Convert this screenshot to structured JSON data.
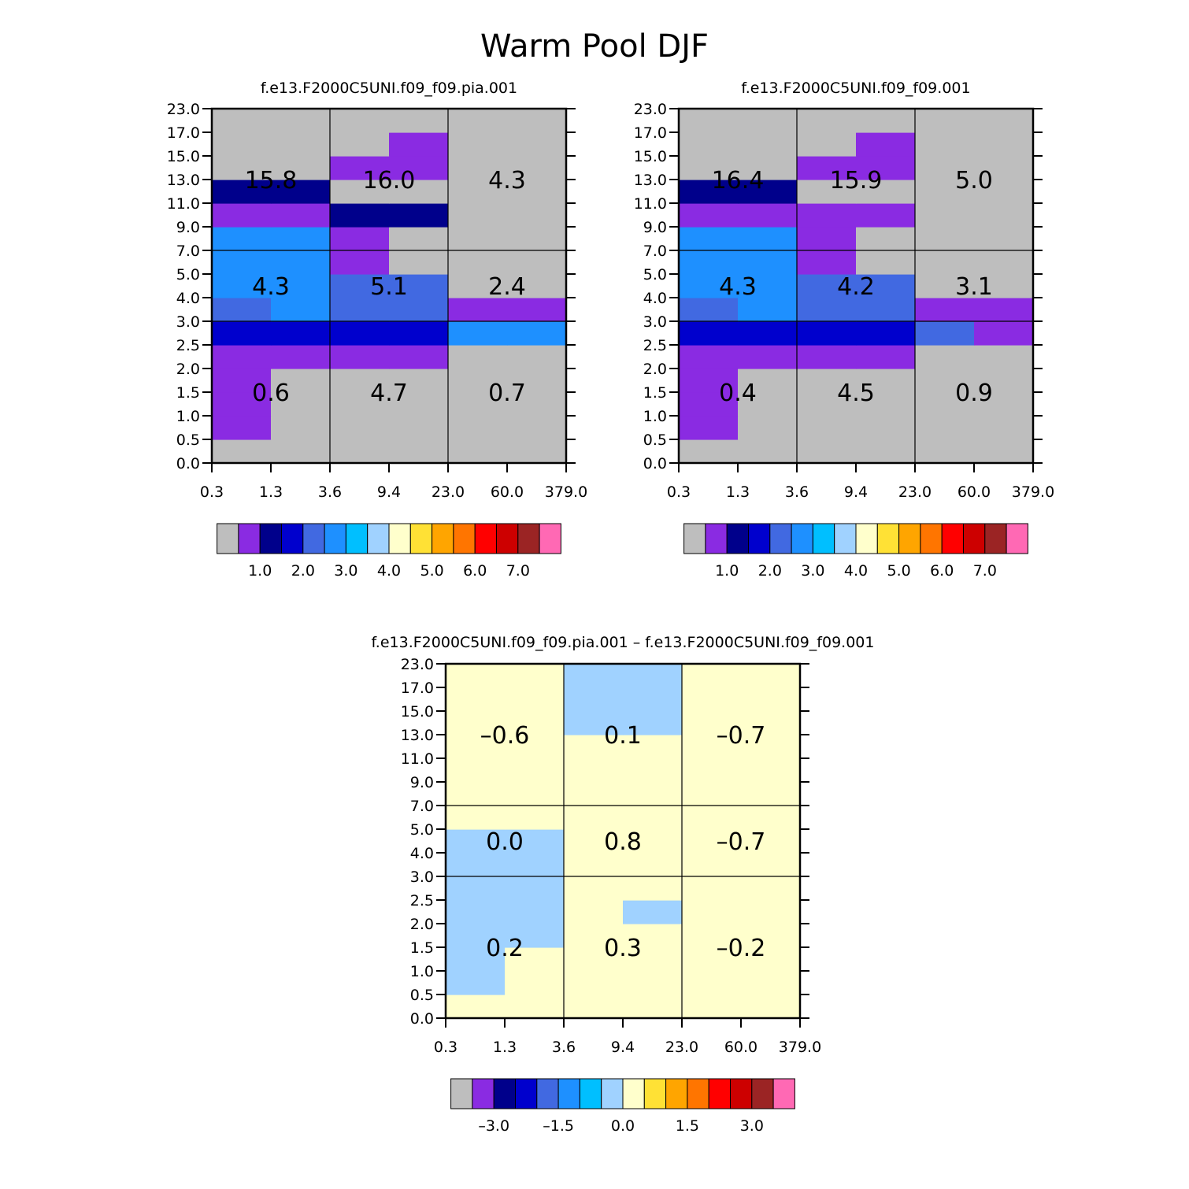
{
  "title": "Warm Pool DJF",
  "chart_data": [
    {
      "type": "heatmap",
      "title": "f.e13.F2000C5UNI.f09_f09.pia.001",
      "x_tick_labels": [
        "0.3",
        "1.3",
        "3.6",
        "9.4",
        "23.0",
        "60.0",
        "379.0"
      ],
      "y_tick_labels": [
        "0.0",
        "0.5",
        "1.0",
        "1.5",
        "2.0",
        "2.5",
        "3.0",
        "4.0",
        "5.0",
        "7.0",
        "9.0",
        "11.0",
        "13.0",
        "15.0",
        "17.0",
        "23.0"
      ],
      "cells": [
        [
          0,
          0,
          0,
          0,
          0,
          0
        ],
        [
          1,
          0,
          0,
          0,
          0,
          0
        ],
        [
          1,
          0,
          0,
          0,
          0,
          0
        ],
        [
          1,
          0,
          0,
          0,
          0,
          0
        ],
        [
          1,
          1,
          1,
          1,
          0,
          0
        ],
        [
          3,
          3,
          3,
          3,
          5,
          5
        ],
        [
          4,
          5,
          4,
          4,
          1,
          1
        ],
        [
          5,
          5,
          4,
          4,
          0,
          0
        ],
        [
          5,
          5,
          1,
          0,
          0,
          0
        ],
        [
          5,
          5,
          1,
          0,
          0,
          0
        ],
        [
          1,
          1,
          2,
          2,
          0,
          0
        ],
        [
          2,
          2,
          0,
          0,
          0,
          0
        ],
        [
          0,
          0,
          1,
          1,
          0,
          0
        ],
        [
          0,
          0,
          0,
          1,
          0,
          0
        ],
        [
          0,
          0,
          0,
          0,
          0,
          0
        ]
      ],
      "region_values": [
        {
          "label": "15.8"
        },
        {
          "label": "16.0"
        },
        {
          "label": "4.3"
        },
        {
          "label": "4.3"
        },
        {
          "label": "5.1"
        },
        {
          "label": "2.4"
        },
        {
          "label": "0.6"
        },
        {
          "label": "4.7"
        },
        {
          "label": "0.7"
        }
      ],
      "colorbar": {
        "colors": [
          "#bebebe",
          "#8a2be2",
          "#00008b",
          "#0000cd",
          "#4169e1",
          "#1e90ff",
          "#00bfff",
          "#a0d2ff",
          "#ffffcc",
          "#ffe135",
          "#ffa500",
          "#ff7500",
          "#ff0000",
          "#cd0000",
          "#9b2424",
          "#ff69b4"
        ],
        "tick_labels": [
          "1.0",
          "2.0",
          "3.0",
          "4.0",
          "5.0",
          "6.0",
          "7.0"
        ]
      }
    },
    {
      "type": "heatmap",
      "title": "f.e13.F2000C5UNI.f09_f09.001",
      "x_tick_labels": [
        "0.3",
        "1.3",
        "3.6",
        "9.4",
        "23.0",
        "60.0",
        "379.0"
      ],
      "y_tick_labels": [
        "0.0",
        "0.5",
        "1.0",
        "1.5",
        "2.0",
        "2.5",
        "3.0",
        "4.0",
        "5.0",
        "7.0",
        "9.0",
        "11.0",
        "13.0",
        "15.0",
        "17.0",
        "23.0"
      ],
      "cells": [
        [
          0,
          0,
          0,
          0,
          0,
          0
        ],
        [
          1,
          0,
          0,
          0,
          0,
          0
        ],
        [
          1,
          0,
          0,
          0,
          0,
          0
        ],
        [
          1,
          0,
          0,
          0,
          0,
          0
        ],
        [
          1,
          1,
          1,
          1,
          0,
          0
        ],
        [
          3,
          3,
          3,
          3,
          4,
          1
        ],
        [
          4,
          5,
          4,
          4,
          1,
          1
        ],
        [
          5,
          5,
          4,
          4,
          0,
          0
        ],
        [
          5,
          5,
          1,
          0,
          0,
          0
        ],
        [
          5,
          5,
          1,
          0,
          0,
          0
        ],
        [
          1,
          1,
          1,
          1,
          0,
          0
        ],
        [
          2,
          2,
          0,
          0,
          0,
          0
        ],
        [
          0,
          0,
          1,
          1,
          0,
          0
        ],
        [
          0,
          0,
          0,
          1,
          0,
          0
        ],
        [
          0,
          0,
          0,
          0,
          0,
          0
        ]
      ],
      "region_values": [
        {
          "label": "16.4"
        },
        {
          "label": "15.9"
        },
        {
          "label": "5.0"
        },
        {
          "label": "4.3"
        },
        {
          "label": "4.2"
        },
        {
          "label": "3.1"
        },
        {
          "label": "0.4"
        },
        {
          "label": "4.5"
        },
        {
          "label": "0.9"
        }
      ],
      "colorbar": {
        "colors": [
          "#bebebe",
          "#8a2be2",
          "#00008b",
          "#0000cd",
          "#4169e1",
          "#1e90ff",
          "#00bfff",
          "#a0d2ff",
          "#ffffcc",
          "#ffe135",
          "#ffa500",
          "#ff7500",
          "#ff0000",
          "#cd0000",
          "#9b2424",
          "#ff69b4"
        ],
        "tick_labels": [
          "1.0",
          "2.0",
          "3.0",
          "4.0",
          "5.0",
          "6.0",
          "7.0"
        ]
      }
    },
    {
      "type": "heatmap",
      "title": "f.e13.F2000C5UNI.f09_f09.pia.001 – f.e13.F2000C5UNI.f09_f09.001",
      "x_tick_labels": [
        "0.3",
        "1.3",
        "3.6",
        "9.4",
        "23.0",
        "60.0",
        "379.0"
      ],
      "y_tick_labels": [
        "0.0",
        "0.5",
        "1.0",
        "1.5",
        "2.0",
        "2.5",
        "3.0",
        "4.0",
        "5.0",
        "7.0",
        "9.0",
        "11.0",
        "13.0",
        "15.0",
        "17.0",
        "23.0"
      ],
      "cells": [
        [
          8,
          8,
          8,
          8,
          8,
          8
        ],
        [
          7,
          8,
          8,
          8,
          8,
          8
        ],
        [
          7,
          8,
          8,
          8,
          8,
          8
        ],
        [
          7,
          7,
          8,
          8,
          8,
          8
        ],
        [
          7,
          7,
          8,
          7,
          8,
          8
        ],
        [
          7,
          7,
          8,
          8,
          8,
          8
        ],
        [
          7,
          7,
          8,
          8,
          8,
          8
        ],
        [
          7,
          7,
          8,
          8,
          8,
          8
        ],
        [
          8,
          8,
          8,
          8,
          8,
          8
        ],
        [
          8,
          8,
          8,
          8,
          8,
          8
        ],
        [
          8,
          8,
          8,
          8,
          8,
          8
        ],
        [
          8,
          8,
          8,
          8,
          8,
          8
        ],
        [
          8,
          8,
          7,
          7,
          8,
          8
        ],
        [
          8,
          8,
          7,
          7,
          8,
          8
        ],
        [
          8,
          8,
          7,
          7,
          8,
          8
        ]
      ],
      "region_values": [
        {
          "label": "–0.6"
        },
        {
          "label": "0.1"
        },
        {
          "label": "–0.7"
        },
        {
          "label": "0.0"
        },
        {
          "label": "0.8"
        },
        {
          "label": "–0.7"
        },
        {
          "label": "0.2"
        },
        {
          "label": "0.3"
        },
        {
          "label": "–0.2"
        }
      ],
      "colorbar": {
        "colors": [
          "#bebebe",
          "#8a2be2",
          "#00008b",
          "#0000cd",
          "#4169e1",
          "#1e90ff",
          "#00bfff",
          "#a0d2ff",
          "#ffffcc",
          "#ffe135",
          "#ffa500",
          "#ff7500",
          "#ff0000",
          "#cd0000",
          "#9b2424",
          "#ff69b4"
        ],
        "tick_labels": [
          "–3.0",
          "–1.5",
          "0.0",
          "1.5",
          "3.0"
        ]
      }
    }
  ]
}
